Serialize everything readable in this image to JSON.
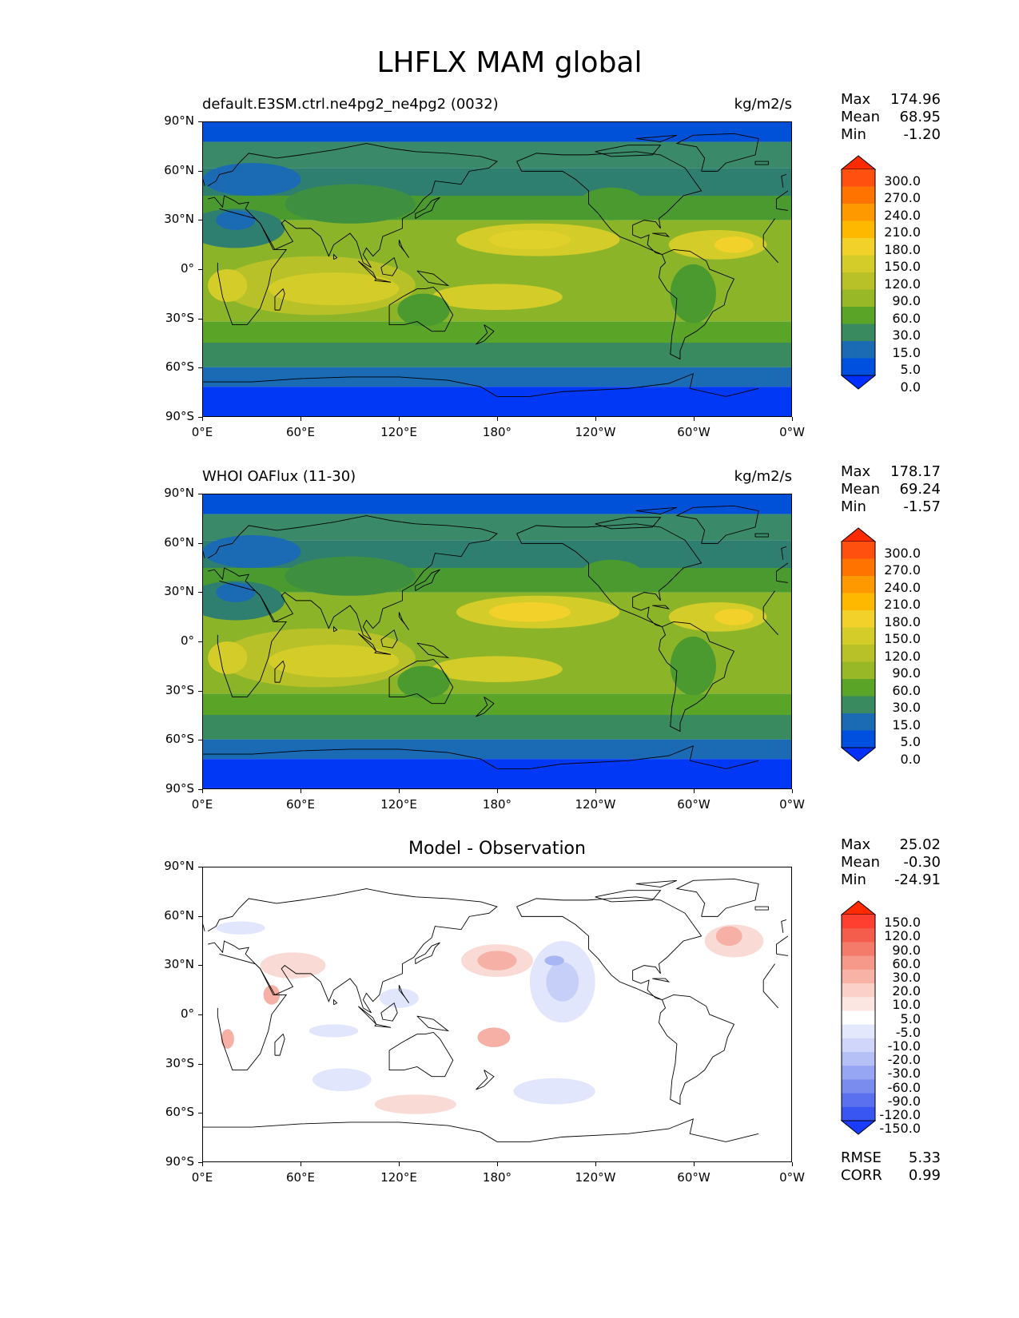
{
  "title": "LHFLX MAM global",
  "panels": [
    {
      "id": "model",
      "title_left": "default.E3SM.ctrl.ne4pg2_ne4pg2 (0032)",
      "title_right": "kg/m2/s",
      "title_center": "",
      "stats": [
        {
          "label": "Max",
          "value": "174.96"
        },
        {
          "label": "Mean",
          "value": "68.95"
        },
        {
          "label": "Min",
          "value": "-1.20"
        }
      ],
      "colorbar_labels": [
        "300.0",
        "270.0",
        "240.0",
        "210.0",
        "180.0",
        "150.0",
        "120.0",
        "90.0",
        "60.0",
        "30.0",
        "15.0",
        "5.0",
        "0.0"
      ],
      "colorbar_colors": [
        "#ff2a00",
        "#ff5010",
        "#ff7300",
        "#ff9900",
        "#ffb800",
        "#f2d22a",
        "#d4cc28",
        "#b8c228",
        "#98b828",
        "#5aa428",
        "#3a8a60",
        "#1a6ab4",
        "#0050e0",
        "#0030ff"
      ]
    },
    {
      "id": "obs",
      "title_left": "WHOI OAFlux (11-30)",
      "title_right": "kg/m2/s",
      "title_center": "",
      "stats": [
        {
          "label": "Max",
          "value": "178.17"
        },
        {
          "label": "Mean",
          "value": "69.24"
        },
        {
          "label": "Min",
          "value": "-1.57"
        }
      ],
      "colorbar_labels": [
        "300.0",
        "270.0",
        "240.0",
        "210.0",
        "180.0",
        "150.0",
        "120.0",
        "90.0",
        "60.0",
        "30.0",
        "15.0",
        "5.0",
        "0.0"
      ],
      "colorbar_colors": [
        "#ff2a00",
        "#ff5010",
        "#ff7300",
        "#ff9900",
        "#ffb800",
        "#f2d22a",
        "#d4cc28",
        "#b8c228",
        "#98b828",
        "#5aa428",
        "#3a8a60",
        "#1a6ab4",
        "#0050e0",
        "#0030ff"
      ]
    },
    {
      "id": "diff",
      "title_left": "",
      "title_right": "",
      "title_center": "Model - Observation",
      "stats": [
        {
          "label": "Max",
          "value": "25.02"
        },
        {
          "label": "Mean",
          "value": "-0.30"
        },
        {
          "label": "Min",
          "value": "-24.91"
        }
      ],
      "colorbar_labels": [
        "150.0",
        "120.0",
        "90.0",
        "60.0",
        "30.0",
        "20.0",
        "10.0",
        "5.0",
        "-5.0",
        "-10.0",
        "-20.0",
        "-30.0",
        "-60.0",
        "-90.0",
        "-120.0",
        "-150.0"
      ],
      "colorbar_colors": [
        "#ff2a00",
        "#ff4030",
        "#f45c4c",
        "#f47a6a",
        "#f6988a",
        "#f8b2a6",
        "#fad0c8",
        "#fce6e2",
        "#ffffff",
        "#e4e8fc",
        "#cfd6fa",
        "#b4c0f6",
        "#97a6f2",
        "#7a8cee",
        "#5a70ee",
        "#3a56f2",
        "#1a3cff"
      ],
      "extra_stats": [
        {
          "label": "RMSE",
          "value": "5.33"
        },
        {
          "label": "CORR",
          "value": "0.99"
        }
      ]
    }
  ],
  "y_ticks": [
    "90°N",
    "60°N",
    "30°N",
    "0°",
    "30°S",
    "60°S",
    "90°S"
  ],
  "x_ticks": [
    "0°E",
    "60°E",
    "120°E",
    "180°",
    "120°W",
    "60°W",
    "0°W"
  ]
}
